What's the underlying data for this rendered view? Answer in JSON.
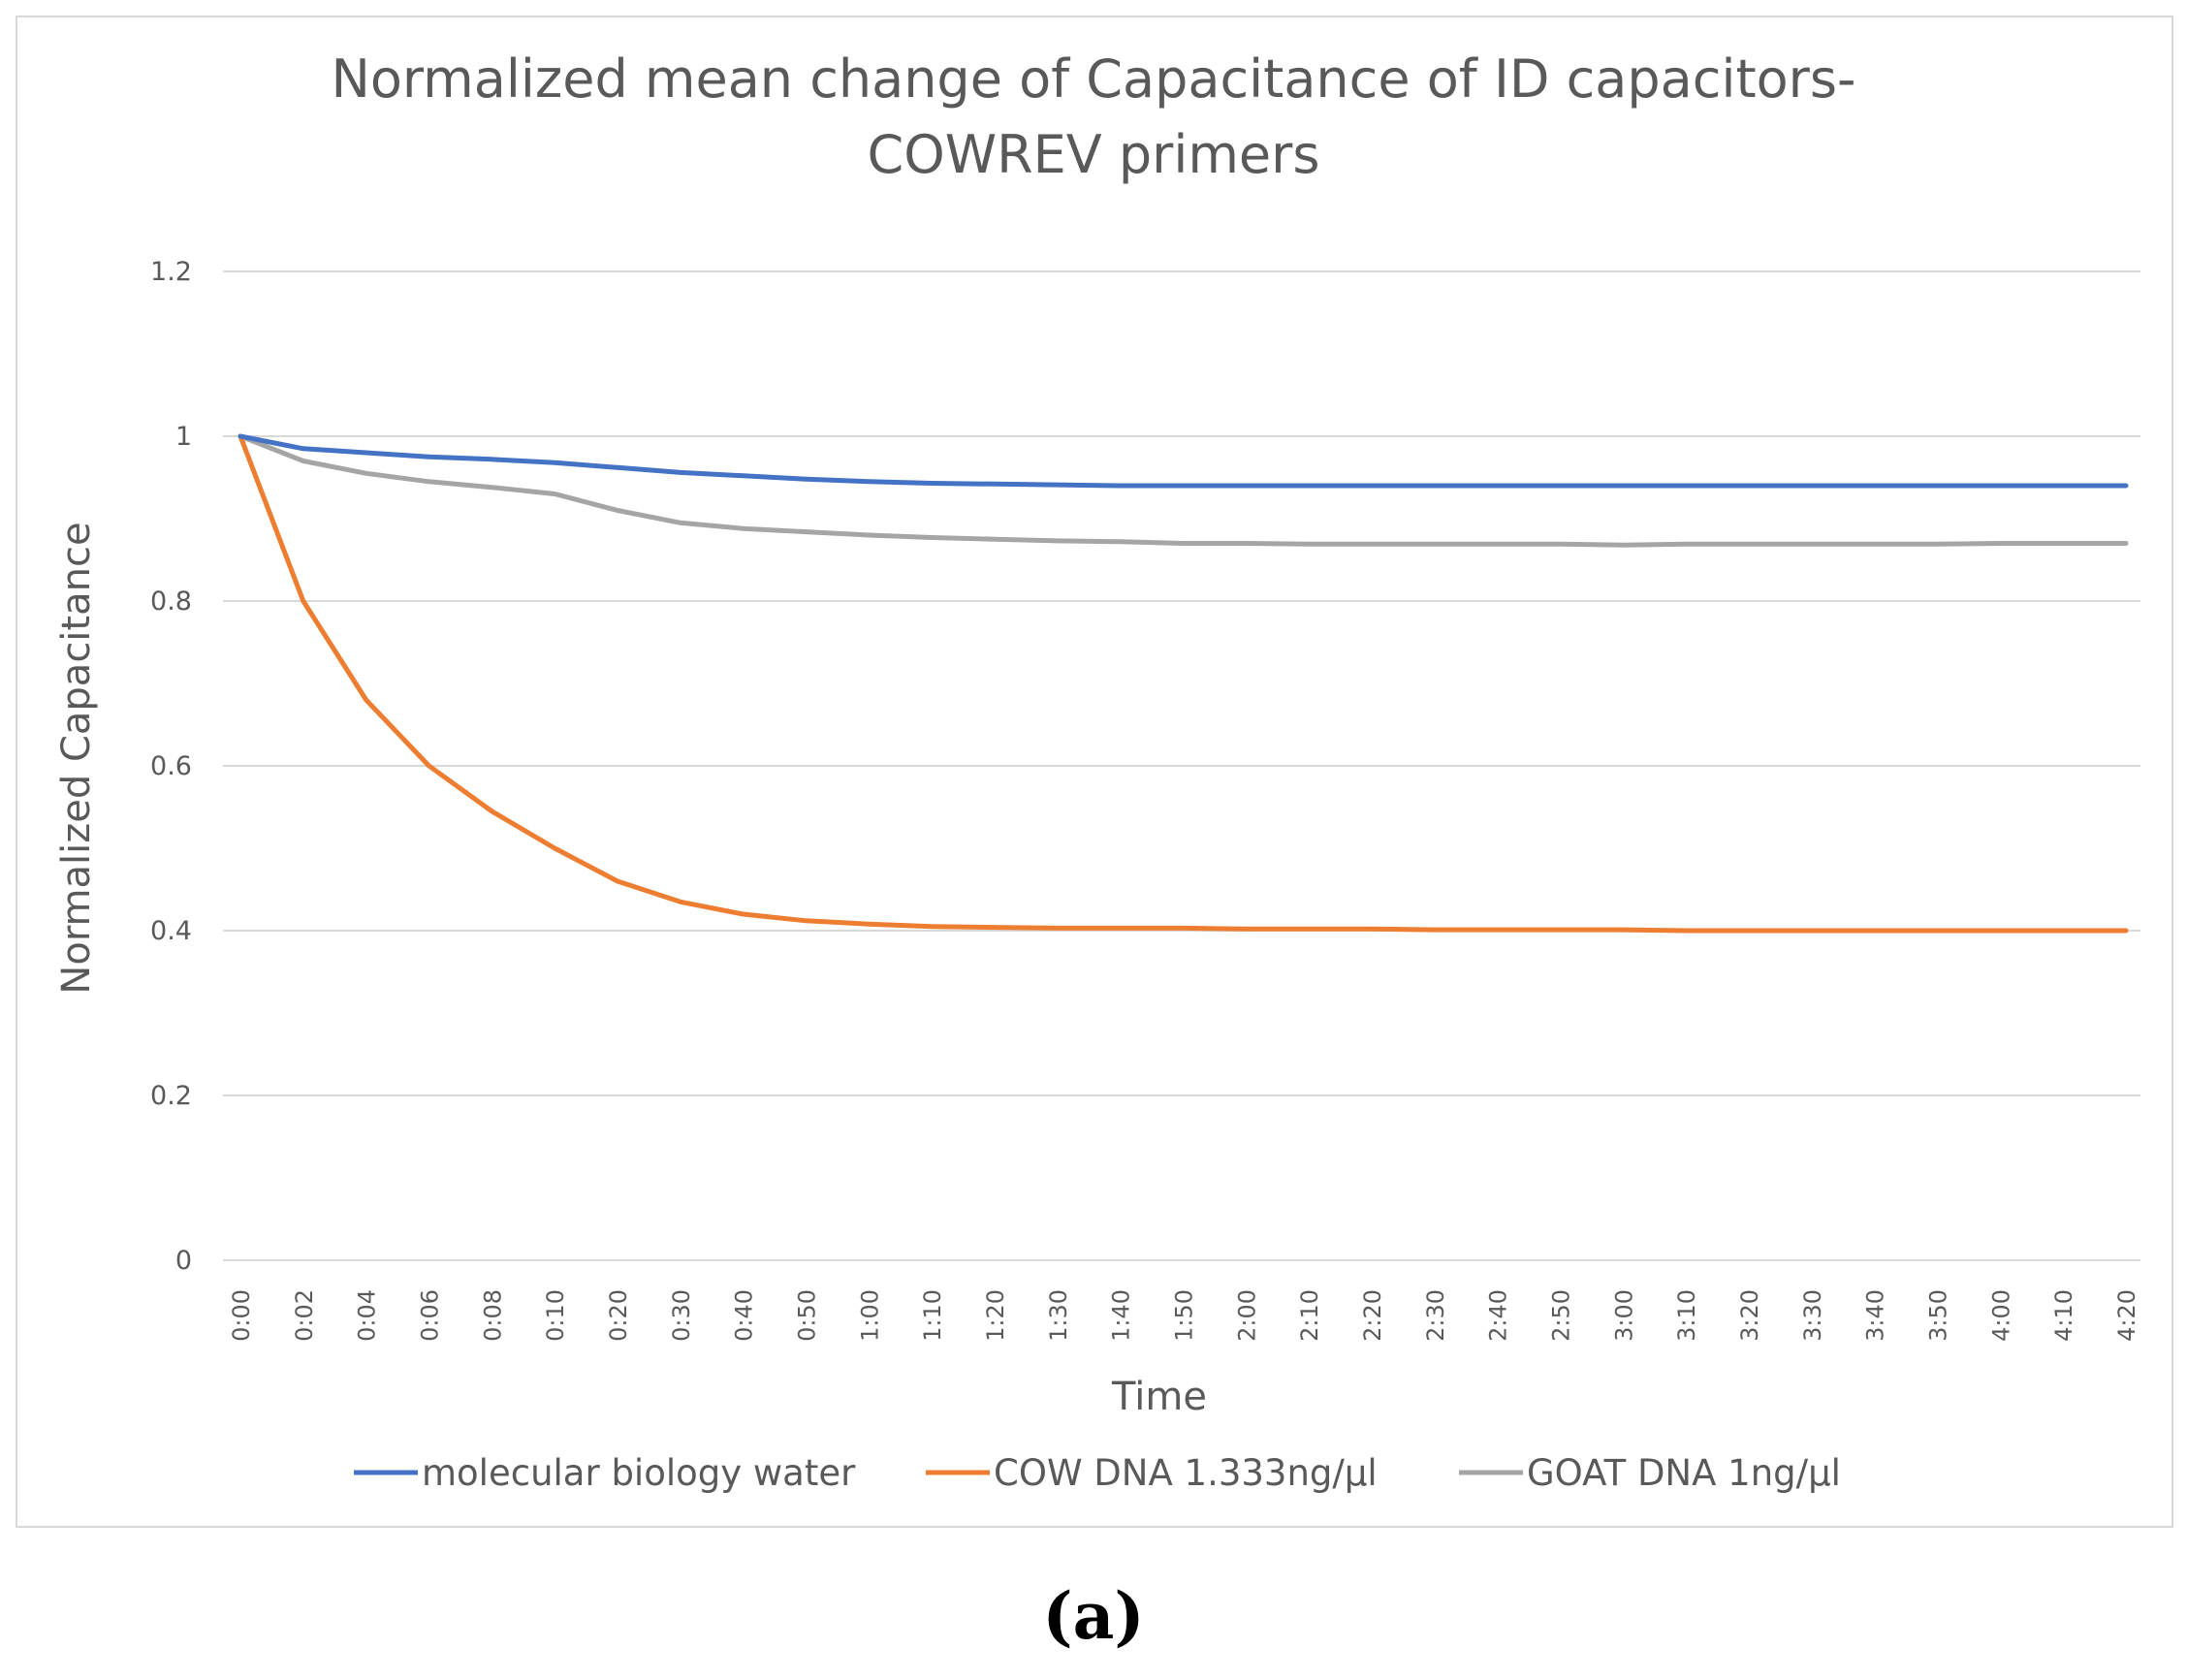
{
  "chart_data": {
    "type": "line",
    "title": "Normalized mean change  of Capacitance of ID capacitors-",
    "title_line2": "COWREV primers",
    "xlabel": "Time",
    "ylabel": "Normalized Capacitance",
    "ylim": [
      0,
      1.2
    ],
    "yticks": [
      0,
      0.2,
      0.4,
      0.6,
      0.8,
      1,
      1.2
    ],
    "ytick_labels": [
      "0",
      "0.2",
      "0.4",
      "0.6",
      "0.8",
      "1",
      "1.2"
    ],
    "grid": true,
    "legend_position": "bottom",
    "categories": [
      "0:00",
      "0:02",
      "0:04",
      "0:06",
      "0:08",
      "0:10",
      "0:20",
      "0:30",
      "0:40",
      "0:50",
      "1:00",
      "1:10",
      "1:20",
      "1:30",
      "1:40",
      "1:50",
      "2:00",
      "2:10",
      "2:20",
      "2:30",
      "2:40",
      "2:50",
      "3:00",
      "3:10",
      "3:20",
      "3:30",
      "3:40",
      "3:50",
      "4:00",
      "4:10",
      "4:20"
    ],
    "series": [
      {
        "name": "molecular biology water",
        "color": "#4472c4",
        "values": [
          1.0,
          0.985,
          0.98,
          0.975,
          0.972,
          0.968,
          0.962,
          0.956,
          0.952,
          0.948,
          0.945,
          0.943,
          0.942,
          0.941,
          0.94,
          0.94,
          0.94,
          0.94,
          0.94,
          0.94,
          0.94,
          0.94,
          0.94,
          0.94,
          0.94,
          0.94,
          0.94,
          0.94,
          0.94,
          0.94,
          0.94
        ]
      },
      {
        "name": "COW DNA 1.333ng/µl",
        "color": "#ed7d31",
        "values": [
          1.0,
          0.8,
          0.68,
          0.6,
          0.545,
          0.5,
          0.46,
          0.435,
          0.42,
          0.412,
          0.408,
          0.405,
          0.404,
          0.403,
          0.403,
          0.403,
          0.402,
          0.402,
          0.402,
          0.401,
          0.401,
          0.401,
          0.401,
          0.4,
          0.4,
          0.4,
          0.4,
          0.4,
          0.4,
          0.4,
          0.4
        ]
      },
      {
        "name": "GOAT DNA 1ng/µl",
        "color": "#a5a5a5",
        "values": [
          1.0,
          0.97,
          0.955,
          0.945,
          0.938,
          0.93,
          0.91,
          0.895,
          0.888,
          0.884,
          0.88,
          0.877,
          0.875,
          0.873,
          0.872,
          0.87,
          0.87,
          0.869,
          0.869,
          0.869,
          0.869,
          0.869,
          0.868,
          0.869,
          0.869,
          0.869,
          0.869,
          0.869,
          0.87,
          0.87,
          0.87
        ]
      }
    ]
  },
  "subfigure_label": "(a)"
}
